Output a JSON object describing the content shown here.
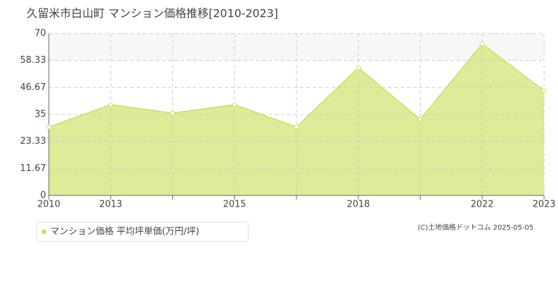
{
  "chart_data": {
    "type": "area",
    "title": "久留米市白山町 マンション価格推移[2010-2023]",
    "categories": [
      "2010",
      "2013",
      null,
      "2015",
      null,
      "2018",
      null,
      "2022",
      "2023"
    ],
    "series": [
      {
        "name": "マンション価格 平均坪単価(万円/坪)",
        "color": "#c5e06a",
        "fill": "#dcec98",
        "values": [
          29.6,
          39.2,
          35.6,
          39.2,
          29.6,
          55.2,
          32.9,
          65.5,
          45.3
        ]
      }
    ],
    "ylim": [
      0,
      70
    ],
    "yticks": [
      0,
      11.67,
      23.33,
      35,
      46.67,
      58.33,
      70
    ],
    "grid": true,
    "source": "(C)土地価格ドットコム 2025-05-05"
  }
}
